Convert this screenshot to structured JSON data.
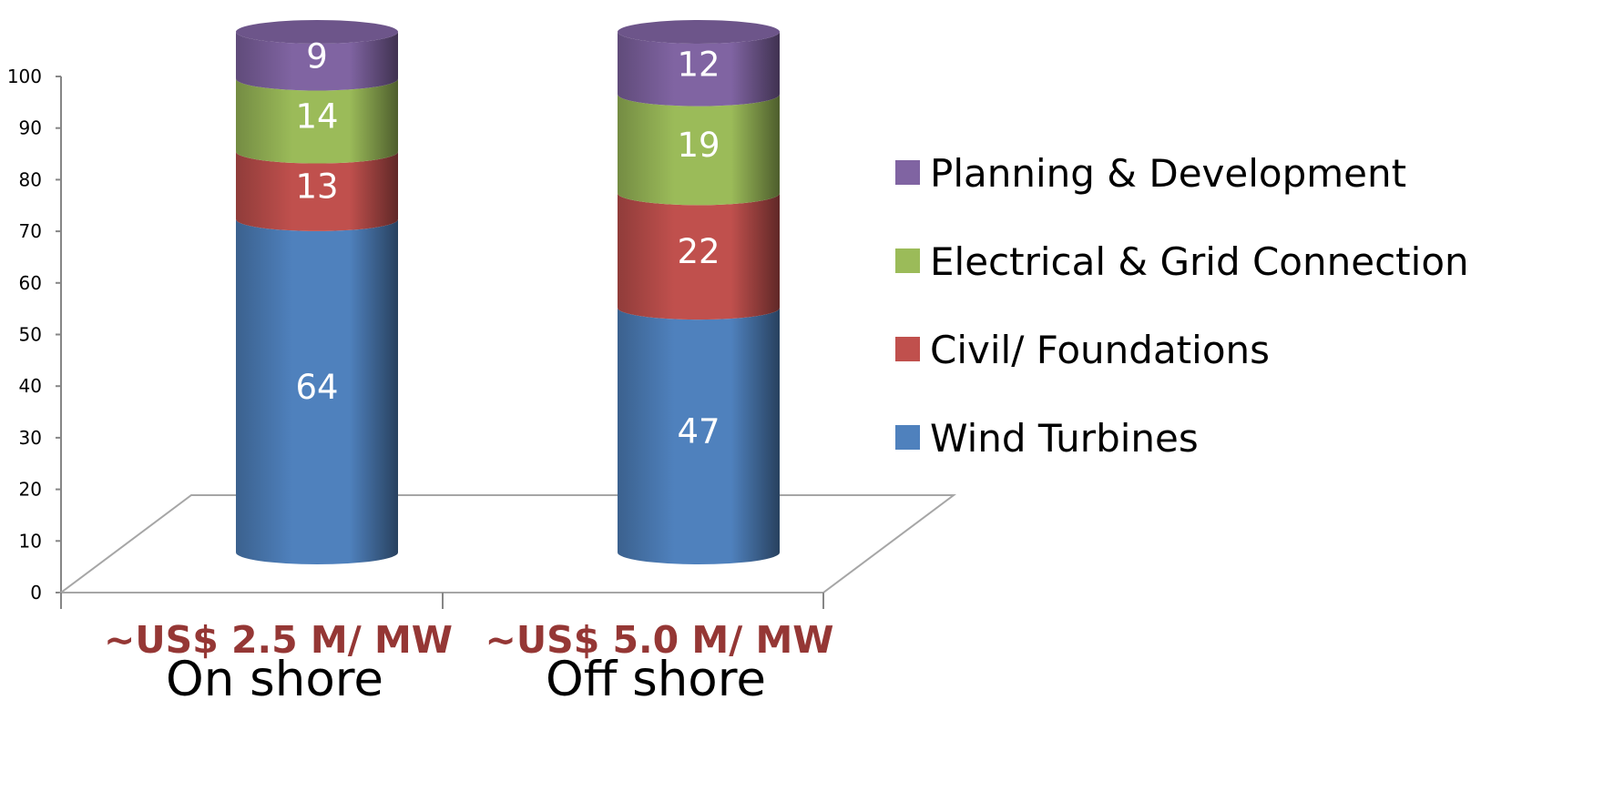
{
  "chart_data": {
    "type": "bar",
    "stacked": true,
    "style": "3d-cylinder",
    "categories": [
      "On shore",
      "Off shore"
    ],
    "category_costs": [
      "~US$ 2.5 M/ MW",
      "~US$ 5.0 M/ MW"
    ],
    "series": [
      {
        "name": "Wind Turbines",
        "values": [
          64,
          47
        ],
        "color": "#4F81BD"
      },
      {
        "name": "Civil/ Foundations",
        "values": [
          13,
          22
        ],
        "color": "#C0504D"
      },
      {
        "name": "Electrical & Grid Connection",
        "values": [
          14,
          19
        ],
        "color": "#9BBB59"
      },
      {
        "name": "Planning & Development",
        "values": [
          9,
          12
        ],
        "color": "#8064A2"
      }
    ],
    "ylim": [
      0,
      100
    ],
    "yticks": [
      "0",
      "10",
      "20",
      "30",
      "40",
      "50",
      "60",
      "70",
      "80",
      "90",
      "100"
    ],
    "legend_position": "right",
    "legend_order": [
      "Planning & Development",
      "Electrical & Grid Connection",
      "Civil/ Foundations",
      "Wind Turbines"
    ],
    "grid": false
  }
}
